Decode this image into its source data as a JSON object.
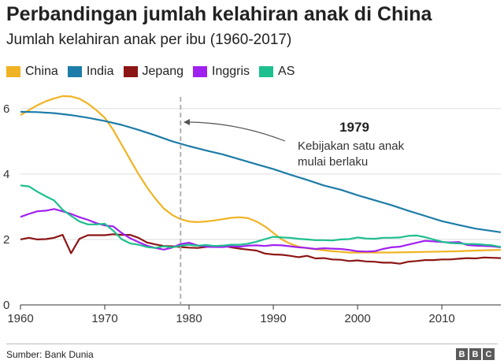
{
  "chart_data": {
    "type": "line",
    "title": "Perbandingan jumlah kelahiran anak di China",
    "subtitle": "Jumlah kelahiran anak per ibu (1960-2017)",
    "xlim": [
      1960,
      2017
    ],
    "ylim": [
      0,
      6.5
    ],
    "x_ticks": [
      1960,
      1970,
      1980,
      1990,
      2000,
      2010
    ],
    "y_ticks": [
      0,
      2,
      4,
      6
    ],
    "grid": "horizontal",
    "legend_position": "top-left",
    "series": [
      {
        "name": "China",
        "color": "#f0b323",
        "points": [
          [
            1960,
            5.8
          ],
          [
            1961,
            5.95
          ],
          [
            1962,
            6.1
          ],
          [
            1963,
            6.22
          ],
          [
            1964,
            6.31
          ],
          [
            1965,
            6.38
          ],
          [
            1966,
            6.37
          ],
          [
            1967,
            6.3
          ],
          [
            1968,
            6.15
          ],
          [
            1969,
            5.95
          ],
          [
            1970,
            5.72
          ],
          [
            1971,
            5.35
          ],
          [
            1972,
            4.9
          ],
          [
            1973,
            4.45
          ],
          [
            1974,
            4.0
          ],
          [
            1975,
            3.6
          ],
          [
            1976,
            3.25
          ],
          [
            1977,
            2.95
          ],
          [
            1978,
            2.75
          ],
          [
            1979,
            2.62
          ],
          [
            1980,
            2.55
          ],
          [
            1981,
            2.53
          ],
          [
            1982,
            2.55
          ],
          [
            1983,
            2.58
          ],
          [
            1984,
            2.62
          ],
          [
            1985,
            2.66
          ],
          [
            1986,
            2.68
          ],
          [
            1987,
            2.65
          ],
          [
            1988,
            2.55
          ],
          [
            1989,
            2.4
          ],
          [
            1990,
            2.2
          ],
          [
            1991,
            2.0
          ],
          [
            1992,
            1.87
          ],
          [
            1993,
            1.78
          ],
          [
            1994,
            1.73
          ],
          [
            1995,
            1.7
          ],
          [
            1996,
            1.67
          ],
          [
            1997,
            1.64
          ],
          [
            1998,
            1.62
          ],
          [
            1999,
            1.6
          ],
          [
            2000,
            1.6
          ],
          [
            2002,
            1.6
          ],
          [
            2004,
            1.6
          ],
          [
            2006,
            1.61
          ],
          [
            2008,
            1.62
          ],
          [
            2010,
            1.63
          ],
          [
            2012,
            1.64
          ],
          [
            2014,
            1.66
          ],
          [
            2017,
            1.68
          ]
        ]
      },
      {
        "name": "India",
        "color": "#1d7ca8",
        "points": [
          [
            1960,
            5.9
          ],
          [
            1962,
            5.89
          ],
          [
            1964,
            5.86
          ],
          [
            1966,
            5.8
          ],
          [
            1968,
            5.72
          ],
          [
            1970,
            5.62
          ],
          [
            1972,
            5.5
          ],
          [
            1974,
            5.35
          ],
          [
            1976,
            5.18
          ],
          [
            1978,
            5.0
          ],
          [
            1980,
            4.85
          ],
          [
            1982,
            4.72
          ],
          [
            1984,
            4.6
          ],
          [
            1986,
            4.45
          ],
          [
            1988,
            4.3
          ],
          [
            1990,
            4.15
          ],
          [
            1992,
            3.98
          ],
          [
            1994,
            3.82
          ],
          [
            1996,
            3.65
          ],
          [
            1998,
            3.52
          ],
          [
            2000,
            3.35
          ],
          [
            2002,
            3.2
          ],
          [
            2004,
            3.05
          ],
          [
            2006,
            2.88
          ],
          [
            2008,
            2.72
          ],
          [
            2010,
            2.56
          ],
          [
            2012,
            2.44
          ],
          [
            2014,
            2.33
          ],
          [
            2017,
            2.22
          ]
        ]
      },
      {
        "name": "Jepang",
        "color": "#8c1515",
        "points": [
          [
            1960,
            2.0
          ],
          [
            1961,
            2.05
          ],
          [
            1962,
            2.0
          ],
          [
            1963,
            2.01
          ],
          [
            1964,
            2.05
          ],
          [
            1965,
            2.14
          ],
          [
            1966,
            1.58
          ],
          [
            1967,
            2.02
          ],
          [
            1968,
            2.13
          ],
          [
            1969,
            2.13
          ],
          [
            1970,
            2.13
          ],
          [
            1971,
            2.16
          ],
          [
            1972,
            2.14
          ],
          [
            1973,
            2.14
          ],
          [
            1974,
            2.05
          ],
          [
            1975,
            1.91
          ],
          [
            1976,
            1.85
          ],
          [
            1977,
            1.8
          ],
          [
            1978,
            1.79
          ],
          [
            1979,
            1.77
          ],
          [
            1980,
            1.75
          ],
          [
            1981,
            1.74
          ],
          [
            1982,
            1.77
          ],
          [
            1983,
            1.8
          ],
          [
            1984,
            1.81
          ],
          [
            1985,
            1.76
          ],
          [
            1986,
            1.72
          ],
          [
            1987,
            1.69
          ],
          [
            1988,
            1.66
          ],
          [
            1989,
            1.57
          ],
          [
            1990,
            1.54
          ],
          [
            1991,
            1.53
          ],
          [
            1992,
            1.5
          ],
          [
            1993,
            1.46
          ],
          [
            1994,
            1.5
          ],
          [
            1995,
            1.42
          ],
          [
            1996,
            1.43
          ],
          [
            1997,
            1.39
          ],
          [
            1998,
            1.38
          ],
          [
            1999,
            1.34
          ],
          [
            2000,
            1.36
          ],
          [
            2001,
            1.33
          ],
          [
            2002,
            1.32
          ],
          [
            2003,
            1.29
          ],
          [
            2004,
            1.29
          ],
          [
            2005,
            1.26
          ],
          [
            2006,
            1.32
          ],
          [
            2007,
            1.34
          ],
          [
            2008,
            1.37
          ],
          [
            2009,
            1.37
          ],
          [
            2010,
            1.39
          ],
          [
            2011,
            1.39
          ],
          [
            2012,
            1.41
          ],
          [
            2013,
            1.43
          ],
          [
            2014,
            1.42
          ],
          [
            2015,
            1.45
          ],
          [
            2016,
            1.44
          ],
          [
            2017,
            1.43
          ]
        ]
      },
      {
        "name": "Inggris",
        "color": "#a020f0",
        "points": [
          [
            1960,
            2.69
          ],
          [
            1961,
            2.78
          ],
          [
            1962,
            2.86
          ],
          [
            1963,
            2.88
          ],
          [
            1964,
            2.93
          ],
          [
            1965,
            2.86
          ],
          [
            1966,
            2.78
          ],
          [
            1967,
            2.68
          ],
          [
            1968,
            2.6
          ],
          [
            1969,
            2.5
          ],
          [
            1970,
            2.43
          ],
          [
            1971,
            2.4
          ],
          [
            1972,
            2.2
          ],
          [
            1973,
            2.04
          ],
          [
            1974,
            1.92
          ],
          [
            1975,
            1.81
          ],
          [
            1976,
            1.74
          ],
          [
            1977,
            1.69
          ],
          [
            1978,
            1.75
          ],
          [
            1979,
            1.86
          ],
          [
            1980,
            1.9
          ],
          [
            1981,
            1.82
          ],
          [
            1982,
            1.78
          ],
          [
            1983,
            1.77
          ],
          [
            1984,
            1.77
          ],
          [
            1985,
            1.79
          ],
          [
            1986,
            1.78
          ],
          [
            1987,
            1.81
          ],
          [
            1988,
            1.82
          ],
          [
            1989,
            1.8
          ],
          [
            1990,
            1.83
          ],
          [
            1991,
            1.82
          ],
          [
            1992,
            1.79
          ],
          [
            1993,
            1.76
          ],
          [
            1994,
            1.74
          ],
          [
            1995,
            1.71
          ],
          [
            1996,
            1.73
          ],
          [
            1997,
            1.72
          ],
          [
            1998,
            1.71
          ],
          [
            1999,
            1.68
          ],
          [
            2000,
            1.64
          ],
          [
            2001,
            1.63
          ],
          [
            2002,
            1.64
          ],
          [
            2003,
            1.71
          ],
          [
            2004,
            1.76
          ],
          [
            2005,
            1.78
          ],
          [
            2006,
            1.84
          ],
          [
            2007,
            1.9
          ],
          [
            2008,
            1.96
          ],
          [
            2009,
            1.94
          ],
          [
            2010,
            1.92
          ],
          [
            2011,
            1.91
          ],
          [
            2012,
            1.92
          ],
          [
            2013,
            1.83
          ],
          [
            2014,
            1.81
          ],
          [
            2015,
            1.8
          ],
          [
            2016,
            1.79
          ],
          [
            2017,
            1.76
          ]
        ]
      },
      {
        "name": "AS",
        "color": "#1dbf8e",
        "points": [
          [
            1960,
            3.65
          ],
          [
            1961,
            3.62
          ],
          [
            1962,
            3.46
          ],
          [
            1963,
            3.32
          ],
          [
            1964,
            3.19
          ],
          [
            1965,
            2.91
          ],
          [
            1966,
            2.72
          ],
          [
            1967,
            2.55
          ],
          [
            1968,
            2.46
          ],
          [
            1969,
            2.46
          ],
          [
            1970,
            2.48
          ],
          [
            1971,
            2.27
          ],
          [
            1972,
            2.01
          ],
          [
            1973,
            1.88
          ],
          [
            1974,
            1.84
          ],
          [
            1975,
            1.77
          ],
          [
            1976,
            1.74
          ],
          [
            1977,
            1.79
          ],
          [
            1978,
            1.76
          ],
          [
            1979,
            1.81
          ],
          [
            1980,
            1.84
          ],
          [
            1981,
            1.81
          ],
          [
            1982,
            1.83
          ],
          [
            1983,
            1.8
          ],
          [
            1984,
            1.81
          ],
          [
            1985,
            1.84
          ],
          [
            1986,
            1.84
          ],
          [
            1987,
            1.87
          ],
          [
            1988,
            1.93
          ],
          [
            1989,
            2.01
          ],
          [
            1990,
            2.08
          ],
          [
            1991,
            2.06
          ],
          [
            1992,
            2.05
          ],
          [
            1993,
            2.02
          ],
          [
            1994,
            2.0
          ],
          [
            1995,
            1.98
          ],
          [
            1996,
            1.98
          ],
          [
            1997,
            1.97
          ],
          [
            1998,
            2.0
          ],
          [
            1999,
            2.01
          ],
          [
            2000,
            2.06
          ],
          [
            2001,
            2.03
          ],
          [
            2002,
            2.02
          ],
          [
            2003,
            2.05
          ],
          [
            2004,
            2.05
          ],
          [
            2005,
            2.06
          ],
          [
            2006,
            2.11
          ],
          [
            2007,
            2.12
          ],
          [
            2008,
            2.07
          ],
          [
            2009,
            2.0
          ],
          [
            2010,
            1.93
          ],
          [
            2011,
            1.89
          ],
          [
            2012,
            1.88
          ],
          [
            2013,
            1.86
          ],
          [
            2014,
            1.86
          ],
          [
            2015,
            1.84
          ],
          [
            2016,
            1.82
          ],
          [
            2017,
            1.77
          ]
        ]
      }
    ],
    "annotation": {
      "x": 1979,
      "year": "1979",
      "line1": "Kebijakan satu anak",
      "line2": "mulai berlaku"
    },
    "source": "Sumber: Bank Dunia",
    "logo_letters": [
      "B",
      "B",
      "C"
    ]
  }
}
